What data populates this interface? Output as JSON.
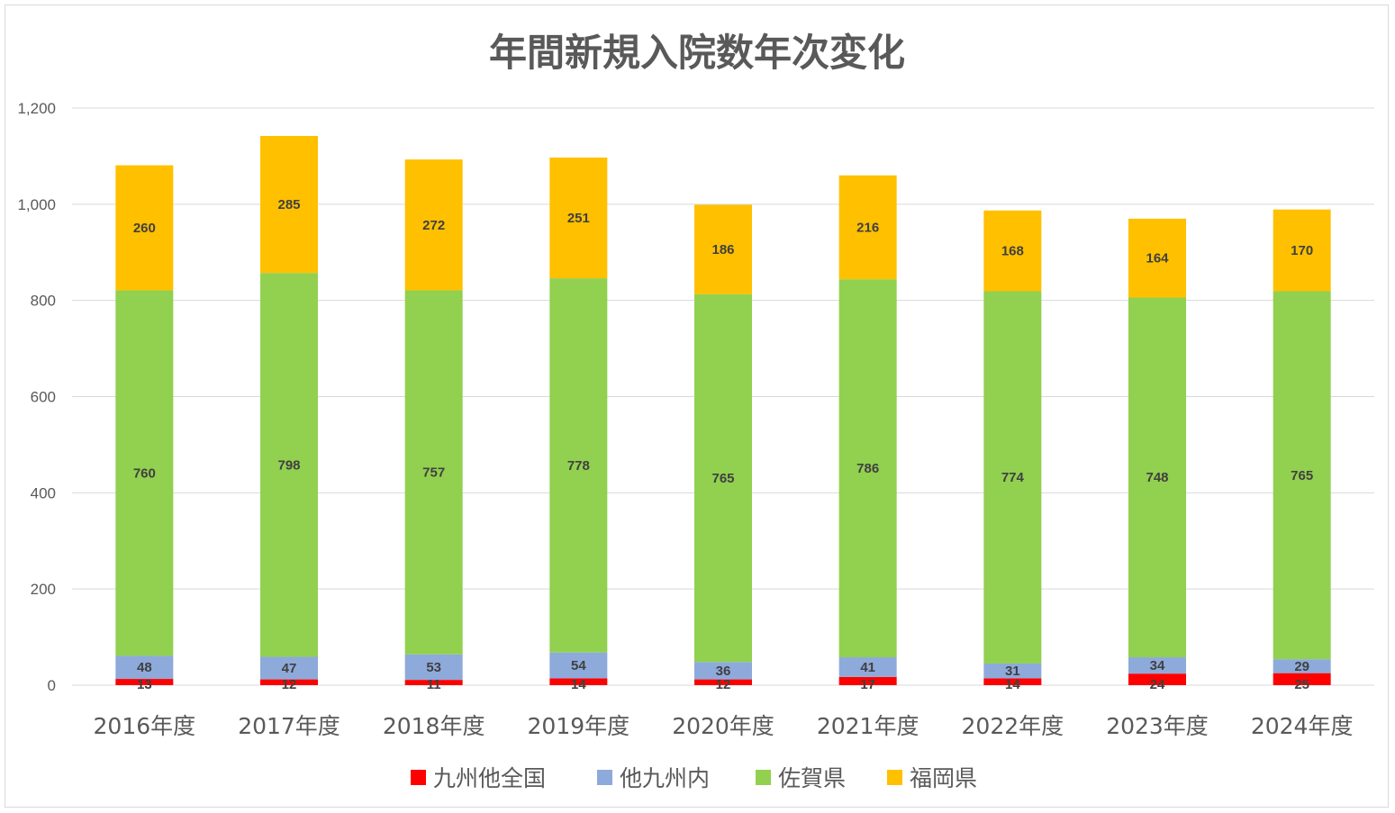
{
  "chart_data": {
    "type": "bar",
    "stacked": true,
    "title": "年間新規入院数年次変化",
    "xlabel": "",
    "ylabel": "",
    "ylim": [
      0,
      1200
    ],
    "yticks": [
      "0",
      "200",
      "400",
      "600",
      "800",
      "1,000",
      "1,200"
    ],
    "ytick_values": [
      0,
      200,
      400,
      600,
      800,
      1000,
      1200
    ],
    "grid": true,
    "legend_position": "bottom",
    "categories": [
      "2016年度",
      "2017年度",
      "2018年度",
      "2019年度",
      "2020年度",
      "2021年度",
      "2022年度",
      "2023年度",
      "2024年度"
    ],
    "series": [
      {
        "name": "九州他全国",
        "color": "#ff0000",
        "values": [
          13,
          12,
          11,
          14,
          12,
          17,
          14,
          24,
          25
        ]
      },
      {
        "name": "他九州内",
        "color": "#8eaadb",
        "values": [
          48,
          47,
          53,
          54,
          36,
          41,
          31,
          34,
          29
        ]
      },
      {
        "name": "佐賀県",
        "color": "#92d050",
        "values": [
          760,
          798,
          757,
          778,
          765,
          786,
          774,
          748,
          765
        ]
      },
      {
        "name": "福岡県",
        "color": "#ffc000",
        "values": [
          260,
          285,
          272,
          251,
          186,
          216,
          168,
          164,
          170
        ]
      }
    ]
  }
}
